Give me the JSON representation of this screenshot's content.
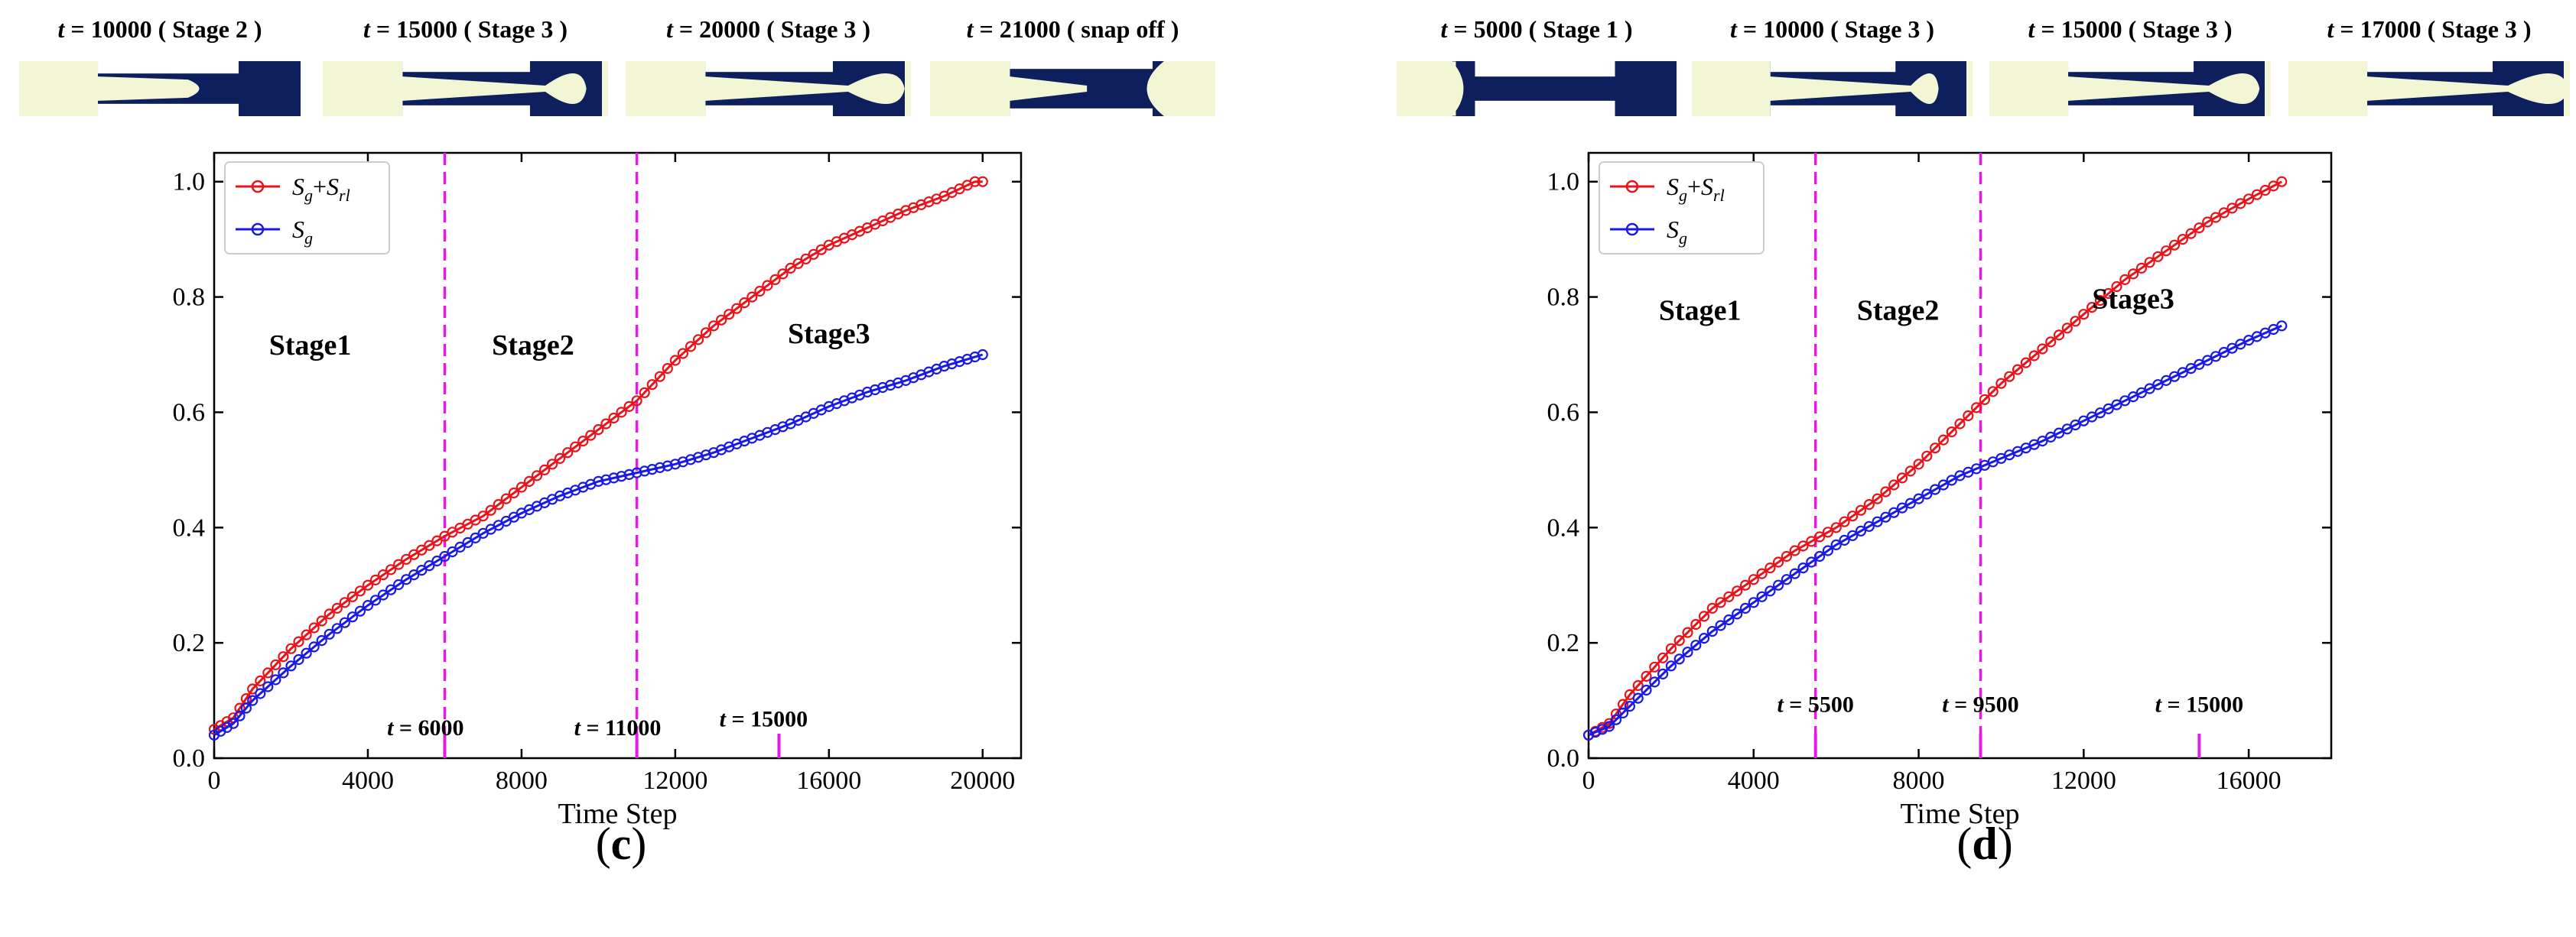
{
  "chart_data": [
    {
      "type": "line",
      "panel_label": "c",
      "xlabel": "Time Step",
      "ylabel": "",
      "xlim": [
        0,
        21000
      ],
      "ylim": [
        0,
        1.05
      ],
      "xticks": [
        0,
        4000,
        8000,
        12000,
        16000,
        20000
      ],
      "xtick_labels": [
        "0",
        "4000",
        "8000",
        "12000",
        "16000",
        "20000"
      ],
      "yticks": [
        0.0,
        0.2,
        0.4,
        0.6,
        0.8,
        1.0
      ],
      "ytick_labels": [
        "0.0",
        "0.2",
        "0.4",
        "0.6",
        "0.8",
        "1.0"
      ],
      "legend_position": "top-left",
      "legend": [
        {
          "main": "S",
          "sub": "g",
          "plus": "+",
          "main2": "S",
          "sub2": "rl",
          "color": "#e8141c"
        },
        {
          "main": "S",
          "sub": "g",
          "color": "#1a1ae6"
        }
      ],
      "series": [
        {
          "name": "Sg+Srl",
          "color": "#e8141c",
          "x": [
            0,
            500,
            1000,
            2000,
            3000,
            4000,
            5000,
            6000,
            7000,
            8000,
            9000,
            10000,
            11000,
            12000,
            13000,
            14000,
            15000,
            16000,
            17000,
            18000,
            19000,
            19800,
            20000
          ],
          "y": [
            0.05,
            0.07,
            0.12,
            0.19,
            0.25,
            0.3,
            0.345,
            0.385,
            0.42,
            0.47,
            0.52,
            0.57,
            0.62,
            0.69,
            0.75,
            0.8,
            0.85,
            0.89,
            0.92,
            0.95,
            0.975,
            1.0,
            1.0
          ]
        },
        {
          "name": "Sg",
          "color": "#1a1ae6",
          "x": [
            0,
            500,
            1000,
            2000,
            3000,
            4000,
            5000,
            6000,
            7000,
            8000,
            9000,
            10000,
            11000,
            12000,
            13000,
            14000,
            15000,
            16000,
            17000,
            18000,
            19000,
            20000
          ],
          "y": [
            0.04,
            0.06,
            0.1,
            0.16,
            0.215,
            0.265,
            0.31,
            0.35,
            0.39,
            0.425,
            0.455,
            0.48,
            0.495,
            0.51,
            0.53,
            0.555,
            0.58,
            0.61,
            0.635,
            0.655,
            0.68,
            0.7
          ]
        }
      ],
      "vlines": [
        {
          "x": 6000,
          "color": "#e619e6"
        },
        {
          "x": 11000,
          "color": "#e619e6"
        }
      ],
      "marker_ticks": [
        6000,
        11000,
        14700
      ],
      "stage_labels": [
        {
          "text": "Stage1",
          "x": 2500,
          "y": 0.7
        },
        {
          "text": "Stage2",
          "x": 8300,
          "y": 0.7
        },
        {
          "text": "Stage3",
          "x": 16000,
          "y": 0.72
        }
      ],
      "time_annotations": [
        {
          "t": "t",
          "eq": " = 6000",
          "x": 5500,
          "y": 0.04
        },
        {
          "t": "t",
          "eq": " = 11000",
          "x": 10500,
          "y": 0.04
        },
        {
          "t": "t",
          "eq": " = 15000",
          "x": 14300,
          "y": 0.055
        }
      ],
      "snapshots": [
        {
          "t": "t",
          "label": " = 10000 ( Stage 2 )",
          "shape": "stage2"
        },
        {
          "t": "t",
          "label": " = 15000 ( Stage 3 )",
          "shape": "stage3a"
        },
        {
          "t": "t",
          "label": " = 20000 ( Stage 3 )",
          "shape": "stage3b"
        },
        {
          "t": "t",
          "label": " = 21000 ( snap off )",
          "shape": "snapoff"
        }
      ]
    },
    {
      "type": "line",
      "panel_label": "d",
      "xlabel": "Time Step",
      "ylabel": "",
      "xlim": [
        0,
        18000
      ],
      "ylim": [
        0,
        1.05
      ],
      "xticks": [
        0,
        4000,
        8000,
        12000,
        16000
      ],
      "xtick_labels": [
        "0",
        "4000",
        "8000",
        "12000",
        "16000"
      ],
      "yticks": [
        0.0,
        0.2,
        0.4,
        0.6,
        0.8,
        1.0
      ],
      "ytick_labels": [
        "0.0",
        "0.2",
        "0.4",
        "0.6",
        "0.8",
        "1.0"
      ],
      "legend_position": "top-left",
      "legend": [
        {
          "main": "S",
          "sub": "g",
          "plus": "+",
          "main2": "S",
          "sub2": "rl",
          "color": "#e8141c"
        },
        {
          "main": "S",
          "sub": "g",
          "color": "#1a1ae6"
        }
      ],
      "series": [
        {
          "name": "Sg+Srl",
          "color": "#e8141c",
          "x": [
            0,
            500,
            1000,
            2000,
            3000,
            4000,
            5000,
            6000,
            7000,
            8000,
            9000,
            10000,
            11000,
            12000,
            13000,
            14000,
            15000,
            16000,
            16800
          ],
          "y": [
            0.04,
            0.06,
            0.11,
            0.19,
            0.26,
            0.31,
            0.36,
            0.4,
            0.45,
            0.51,
            0.58,
            0.65,
            0.71,
            0.77,
            0.83,
            0.88,
            0.93,
            0.97,
            1.0
          ]
        },
        {
          "name": "Sg",
          "color": "#1a1ae6",
          "x": [
            0,
            500,
            1000,
            2000,
            3000,
            4000,
            5000,
            6000,
            7000,
            8000,
            9000,
            10000,
            11000,
            12000,
            13000,
            14000,
            15000,
            16000,
            16800
          ],
          "y": [
            0.04,
            0.055,
            0.09,
            0.16,
            0.22,
            0.27,
            0.32,
            0.37,
            0.41,
            0.45,
            0.49,
            0.52,
            0.55,
            0.585,
            0.62,
            0.655,
            0.69,
            0.725,
            0.75
          ]
        }
      ],
      "vlines": [
        {
          "x": 5500,
          "color": "#e619e6"
        },
        {
          "x": 9500,
          "color": "#e619e6"
        }
      ],
      "marker_ticks": [
        5500,
        9500,
        14800
      ],
      "stage_labels": [
        {
          "text": "Stage1",
          "x": 2700,
          "y": 0.76
        },
        {
          "text": "Stage2",
          "x": 7500,
          "y": 0.76
        },
        {
          "text": "Stage3",
          "x": 13200,
          "y": 0.78
        }
      ],
      "time_annotations": [
        {
          "t": "t",
          "eq": " = 5500",
          "x": 5500,
          "y": 0.08
        },
        {
          "t": "t",
          "eq": " = 9500",
          "x": 9500,
          "y": 0.08
        },
        {
          "t": "t",
          "eq": " = 15000",
          "x": 14800,
          "y": 0.08
        }
      ],
      "snapshots": [
        {
          "t": "t",
          "label": " = 5000 ( Stage 1 )",
          "shape": "stage1"
        },
        {
          "t": "t",
          "label": " = 10000 ( Stage 3 )",
          "shape": "stage3c"
        },
        {
          "t": "t",
          "label": " = 15000 ( Stage 3 )",
          "shape": "stage3d"
        },
        {
          "t": "t",
          "label": " = 17000 ( Stage 3 )",
          "shape": "stage3e"
        }
      ]
    }
  ],
  "colors": {
    "fluid_light": "#f2f6d4",
    "fluid_dark": "#0d1f5c",
    "vline": "#e619e6"
  }
}
